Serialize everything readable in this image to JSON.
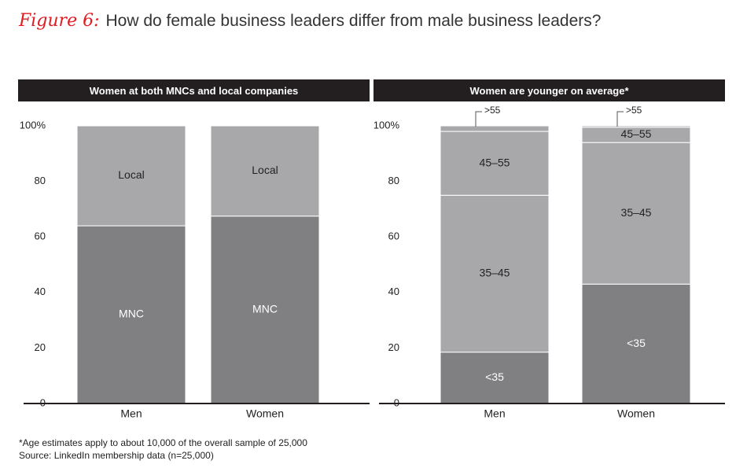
{
  "figure": {
    "label": "Figure 6:",
    "title": "How do female business leaders differ from male business leaders?"
  },
  "footnotes": [
    "*Age estimates apply to about 10,000 of the overall sample of 25,000",
    "Source: LinkedIn membership data (n=25,000)"
  ],
  "colors": {
    "dark": "#808083",
    "light": "#a8a8ab",
    "header_bg": "#231f20",
    "title_red": "#e11b22"
  },
  "chart_data": [
    {
      "type": "bar",
      "stacked": true,
      "title": "Women at both MNCs and local companies",
      "categories": [
        "Men",
        "Women"
      ],
      "ylim": [
        0,
        100
      ],
      "yticks": [
        "0",
        "20",
        "40",
        "60",
        "80",
        "100%"
      ],
      "series": [
        {
          "name": "MNC",
          "values": [
            64,
            67.5
          ],
          "color": "#808083"
        },
        {
          "name": "Local",
          "values": [
            36,
            32.5
          ],
          "color": "#a8a8ab"
        }
      ]
    },
    {
      "type": "bar",
      "stacked": true,
      "title": "Women are younger on average*",
      "categories": [
        "Men",
        "Women"
      ],
      "ylim": [
        0,
        100
      ],
      "yticks": [
        "0",
        "20",
        "40",
        "60",
        "80",
        "100%"
      ],
      "series": [
        {
          "name": "<35",
          "values": [
            18.5,
            43
          ],
          "color": "#808083"
        },
        {
          "name": "35–45",
          "values": [
            56.5,
            51
          ],
          "color": "#a8a8ab"
        },
        {
          "name": "45–55",
          "values": [
            23,
            5.5
          ],
          "color": "#a8a8ab"
        },
        {
          "name": ">55",
          "values": [
            2,
            0.5
          ],
          "color": "#a8a8ab",
          "callout": true
        }
      ]
    }
  ]
}
